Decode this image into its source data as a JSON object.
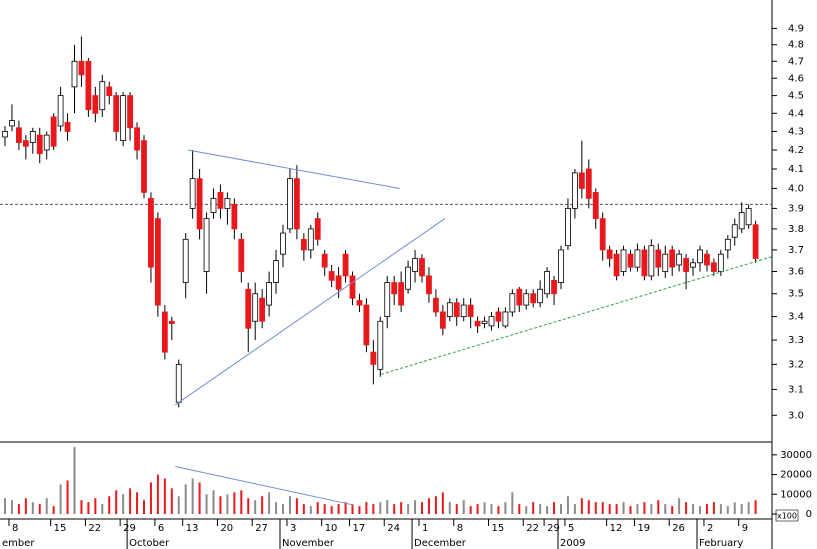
{
  "chart_data": {
    "type": "candlestick",
    "log_scale": true,
    "ylim": [
      2.9,
      5.08
    ],
    "yticks": [
      {
        "value": 3.0,
        "label": "3.0"
      },
      3.1,
      3.2,
      3.3,
      3.4,
      3.5,
      3.6,
      3.7,
      3.8,
      3.9,
      {
        "value": 4.0,
        "label": "4.0"
      },
      4.1,
      4.2,
      4.3,
      4.4,
      4.5,
      4.6,
      4.7,
      4.8,
      4.9
    ],
    "up_color": "#ffffff",
    "down_color": "#e8191c",
    "volume_up_color": "#8a8a8a",
    "volume_ylim": [
      0,
      36000
    ],
    "volume_ticks": [
      0,
      10000,
      20000,
      30000
    ],
    "volume_unit": "x100",
    "categories": [
      null,
      "8",
      null,
      null,
      null,
      null,
      null,
      "15",
      null,
      null,
      null,
      null,
      "22",
      null,
      null,
      null,
      null,
      "29",
      null,
      null,
      null,
      null,
      "6",
      null,
      null,
      null,
      "13",
      null,
      null,
      null,
      null,
      "20",
      null,
      null,
      null,
      null,
      "27",
      null,
      null,
      null,
      null,
      "3",
      null,
      null,
      null,
      null,
      "10",
      null,
      null,
      null,
      "17",
      null,
      null,
      null,
      null,
      "24",
      null,
      null,
      null,
      null,
      "1",
      null,
      null,
      null,
      null,
      "8",
      null,
      null,
      null,
      null,
      "15",
      null,
      null,
      null,
      null,
      "22",
      null,
      null,
      "29",
      null,
      null,
      "5",
      null,
      null,
      null,
      null,
      null,
      "12",
      null,
      null,
      null,
      "19",
      null,
      null,
      null,
      null,
      "26",
      null,
      null,
      null,
      null,
      "2",
      null,
      null,
      null,
      null,
      "9",
      null,
      null
    ],
    "months": [
      "ember",
      null,
      null,
      null,
      null,
      null,
      null,
      null,
      null,
      null,
      null,
      null,
      null,
      null,
      null,
      null,
      null,
      null,
      "October",
      null,
      null,
      null,
      null,
      null,
      null,
      null,
      null,
      null,
      null,
      null,
      null,
      null,
      null,
      null,
      null,
      null,
      null,
      null,
      null,
      null,
      "November",
      null,
      null,
      null,
      null,
      null,
      null,
      null,
      null,
      null,
      null,
      null,
      null,
      null,
      null,
      null,
      null,
      null,
      null,
      "December",
      null,
      null,
      null,
      null,
      null,
      null,
      null,
      null,
      null,
      null,
      null,
      null,
      null,
      null,
      null,
      null,
      null,
      null,
      null,
      null,
      "2009",
      null,
      null,
      null,
      null,
      null,
      null,
      null,
      null,
      null,
      null,
      null,
      null,
      null,
      null,
      null,
      null,
      null,
      null,
      null,
      "February",
      null,
      null,
      null,
      null,
      null,
      null,
      null,
      null
    ],
    "open": [
      4.27,
      4.33,
      4.32,
      4.25,
      4.24,
      4.28,
      4.2,
      4.38,
      4.33,
      4.35,
      4.55,
      4.7,
      4.7,
      4.5,
      4.42,
      4.55,
      4.5,
      4.25,
      4.5,
      4.32,
      4.25,
      3.95,
      3.85,
      3.42,
      3.38,
      3.05,
      3.55,
      3.9,
      4.05,
      3.6,
      3.88,
      3.98,
      3.9,
      3.92,
      3.75,
      3.52,
      3.38,
      3.48,
      3.45,
      3.55,
      3.68,
      3.8,
      4.05,
      3.75,
      3.7,
      3.85,
      3.68,
      3.6,
      3.58,
      3.68,
      3.58,
      3.47,
      3.45,
      3.25,
      3.18,
      3.4,
      3.55,
      3.55,
      3.52,
      3.6,
      3.66,
      3.58,
      3.48,
      3.42,
      3.4,
      3.46,
      3.4,
      3.45,
      3.38,
      3.37,
      3.36,
      3.42,
      3.36,
      3.42,
      3.52,
      3.45,
      3.5,
      3.46,
      3.5,
      3.56,
      3.55,
      3.72,
      3.9,
      4.08,
      4.1,
      3.98,
      3.85,
      3.7,
      3.68,
      3.6,
      3.68,
      3.62,
      3.7,
      3.58,
      3.7,
      3.6,
      3.7,
      3.63,
      3.66,
      3.62,
      3.64,
      3.68,
      3.64,
      3.6,
      3.7,
      3.76,
      3.8,
      3.82,
      3.82
    ],
    "high": [
      4.33,
      4.45,
      4.36,
      4.28,
      4.32,
      4.32,
      4.3,
      4.4,
      4.55,
      4.4,
      4.8,
      4.85,
      4.72,
      4.55,
      4.62,
      4.58,
      4.52,
      4.52,
      4.52,
      4.35,
      4.28,
      3.98,
      3.88,
      3.45,
      3.4,
      3.22,
      3.78,
      4.2,
      4.1,
      3.88,
      4.0,
      4.02,
      3.98,
      3.95,
      3.78,
      3.55,
      3.55,
      3.52,
      3.6,
      3.7,
      3.82,
      4.1,
      4.12,
      3.78,
      3.82,
      3.88,
      3.7,
      3.63,
      3.62,
      3.7,
      3.6,
      3.5,
      3.48,
      3.3,
      3.4,
      3.58,
      3.58,
      3.6,
      3.65,
      3.7,
      3.68,
      3.62,
      3.52,
      3.45,
      3.48,
      3.48,
      3.48,
      3.48,
      3.4,
      3.4,
      3.42,
      3.44,
      3.44,
      3.52,
      3.53,
      3.52,
      3.52,
      3.56,
      3.62,
      3.58,
      3.72,
      3.95,
      4.1,
      4.25,
      4.15,
      4.0,
      3.88,
      3.72,
      3.7,
      3.72,
      3.7,
      3.73,
      3.72,
      3.75,
      3.73,
      3.72,
      3.72,
      3.7,
      3.68,
      3.66,
      3.72,
      3.7,
      3.66,
      3.7,
      3.77,
      3.85,
      3.93,
      3.92,
      3.84
    ],
    "low": [
      4.22,
      4.3,
      4.2,
      4.15,
      4.18,
      4.13,
      4.15,
      4.2,
      4.3,
      4.25,
      4.4,
      4.55,
      4.38,
      4.35,
      4.38,
      4.45,
      4.25,
      4.22,
      4.25,
      4.15,
      3.95,
      3.55,
      3.4,
      3.22,
      3.3,
      3.03,
      3.48,
      3.85,
      3.75,
      3.5,
      3.85,
      3.85,
      3.82,
      3.75,
      3.55,
      3.25,
      3.3,
      3.35,
      3.4,
      3.5,
      3.62,
      3.78,
      3.75,
      3.65,
      3.66,
      3.72,
      3.58,
      3.53,
      3.48,
      3.55,
      3.45,
      3.42,
      3.25,
      3.12,
      3.15,
      3.35,
      3.45,
      3.42,
      3.5,
      3.55,
      3.55,
      3.46,
      3.4,
      3.32,
      3.38,
      3.36,
      3.38,
      3.35,
      3.33,
      3.35,
      3.34,
      3.35,
      3.35,
      3.4,
      3.42,
      3.43,
      3.44,
      3.44,
      3.48,
      3.45,
      3.52,
      3.7,
      3.85,
      3.95,
      3.9,
      3.8,
      3.65,
      3.62,
      3.56,
      3.58,
      3.6,
      3.6,
      3.56,
      3.56,
      3.58,
      3.57,
      3.58,
      3.6,
      3.52,
      3.58,
      3.6,
      3.6,
      3.58,
      3.58,
      3.66,
      3.72,
      3.78,
      3.8,
      3.64
    ],
    "close": [
      4.3,
      4.36,
      4.24,
      4.22,
      4.3,
      4.18,
      4.28,
      4.22,
      4.5,
      4.3,
      4.7,
      4.62,
      4.42,
      4.4,
      4.58,
      4.5,
      4.3,
      4.5,
      4.32,
      4.2,
      3.98,
      3.62,
      3.45,
      3.25,
      3.37,
      3.2,
      3.75,
      4.05,
      3.8,
      3.85,
      3.95,
      3.9,
      3.95,
      3.8,
      3.6,
      3.35,
      3.5,
      3.38,
      3.55,
      3.65,
      3.78,
      4.05,
      3.8,
      3.7,
      3.8,
      3.75,
      3.62,
      3.56,
      3.52,
      3.58,
      3.48,
      3.45,
      3.28,
      3.2,
      3.38,
      3.55,
      3.5,
      3.45,
      3.62,
      3.66,
      3.58,
      3.5,
      3.42,
      3.35,
      3.46,
      3.4,
      3.45,
      3.4,
      3.36,
      3.38,
      3.4,
      3.38,
      3.42,
      3.5,
      3.45,
      3.5,
      3.46,
      3.52,
      3.6,
      3.5,
      3.7,
      3.9,
      4.08,
      4.0,
      3.95,
      3.85,
      3.7,
      3.66,
      3.58,
      3.7,
      3.62,
      3.7,
      3.58,
      3.72,
      3.62,
      3.68,
      3.62,
      3.68,
      3.6,
      3.64,
      3.7,
      3.63,
      3.6,
      3.68,
      3.75,
      3.82,
      3.88,
      3.9,
      3.66
    ],
    "volume": [
      8000,
      7000,
      5000,
      8000,
      6000,
      5000,
      8000,
      4000,
      15000,
      17000,
      34000,
      7000,
      6000,
      8000,
      5000,
      9000,
      12000,
      10000,
      13000,
      11000,
      7000,
      16000,
      20000,
      18000,
      13000,
      9000,
      15000,
      18000,
      16000,
      10000,
      12000,
      9000,
      10000,
      11000,
      12000,
      8000,
      7000,
      9000,
      11000,
      6000,
      5000,
      9000,
      8000,
      5000,
      4000,
      6000,
      5000,
      4000,
      5000,
      6000,
      5000,
      4000,
      6000,
      5000,
      6000,
      7000,
      5000,
      6000,
      5000,
      7000,
      6000,
      8000,
      9000,
      11000,
      6000,
      5000,
      7000,
      4000,
      5000,
      6000,
      5000,
      4000,
      6000,
      11000,
      5000,
      4000,
      6000,
      5000,
      4000,
      6000,
      5000,
      9000,
      5000,
      8000,
      7000,
      6000,
      6000,
      5000,
      5000,
      6000,
      4000,
      5000,
      6000,
      5000,
      7000,
      5000,
      4000,
      8000,
      6000,
      5000,
      4000,
      5000,
      6000,
      5000,
      4000,
      6000,
      5000,
      6000,
      7000
    ],
    "reference_lines": [
      {
        "value": 3.92,
        "color": "#555555"
      }
    ],
    "trendlines": [
      {
        "color": "#6f8fd0",
        "x": [
          26.3,
          56.8
        ],
        "y": [
          4.2,
          4.0
        ]
      },
      {
        "color": "#6f8fd0",
        "x": [
          24.5,
          63.3
        ],
        "y": [
          3.04,
          3.85
        ]
      },
      {
        "color": "#2e9e4a",
        "dash": true,
        "x": [
          54.1,
          110.5
        ],
        "y": [
          3.16,
          3.67
        ]
      }
    ],
    "volume_trendlines": [
      {
        "color": "#6f8fd0",
        "x": [
          24.5,
          50.1
        ],
        "y": [
          24100,
          4600
        ]
      }
    ]
  }
}
